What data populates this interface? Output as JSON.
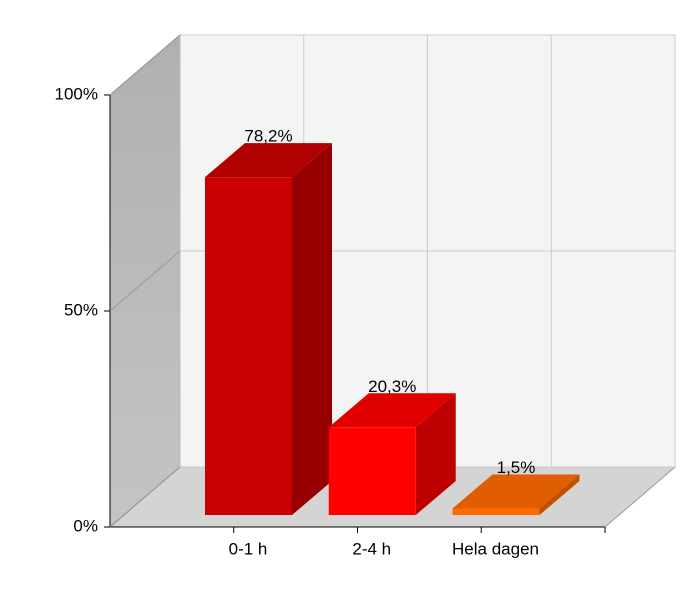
{
  "chart_data": {
    "type": "bar3d",
    "categories": [
      "0-1 h",
      "2-4 h",
      "Hela dagen"
    ],
    "values": [
      78.2,
      20.3,
      1.5
    ],
    "value_labels": [
      "78,2%",
      "20,3%",
      "1,5%"
    ],
    "colors": [
      "#c80000",
      "#ff0000",
      "#ff6a00"
    ],
    "ylim": [
      0,
      100
    ],
    "yticks": [
      {
        "value": 0,
        "label": "0%"
      },
      {
        "value": 50,
        "label": "50%"
      },
      {
        "value": 100,
        "label": "100%"
      }
    ],
    "grid": true
  }
}
